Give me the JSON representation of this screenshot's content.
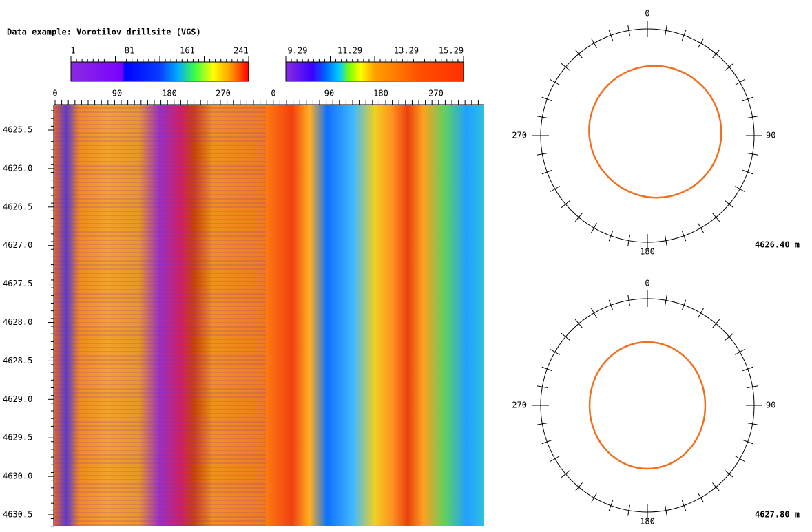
{
  "title": "Data example: Vorotilov drillsite (VGS)",
  "amplitude_scale": {
    "ticks": [
      "1",
      "81",
      "161",
      "241"
    ]
  },
  "traveltime_scale": {
    "ticks": [
      "9.29",
      "11.29",
      "13.29",
      "15.29"
    ]
  },
  "amplitude_azimuth_ticks": [
    "0",
    "90",
    "180",
    "270"
  ],
  "traveltime_azimuth_ticks": [
    "0",
    "90",
    "180",
    "270"
  ],
  "depth_ticks": [
    "4625.5",
    "4626.0",
    "4626.5",
    "4627.0",
    "4627.5",
    "4628.0",
    "4628.5",
    "4629.0",
    "4629.5",
    "4630.0",
    "4630.5"
  ],
  "cross_sections": [
    {
      "north": "0",
      "east": "90",
      "south": "180",
      "west": "270",
      "depth": "4626.40 m"
    },
    {
      "north": "0",
      "east": "90",
      "south": "180",
      "west": "270",
      "depth": "4627.80 m"
    }
  ]
}
